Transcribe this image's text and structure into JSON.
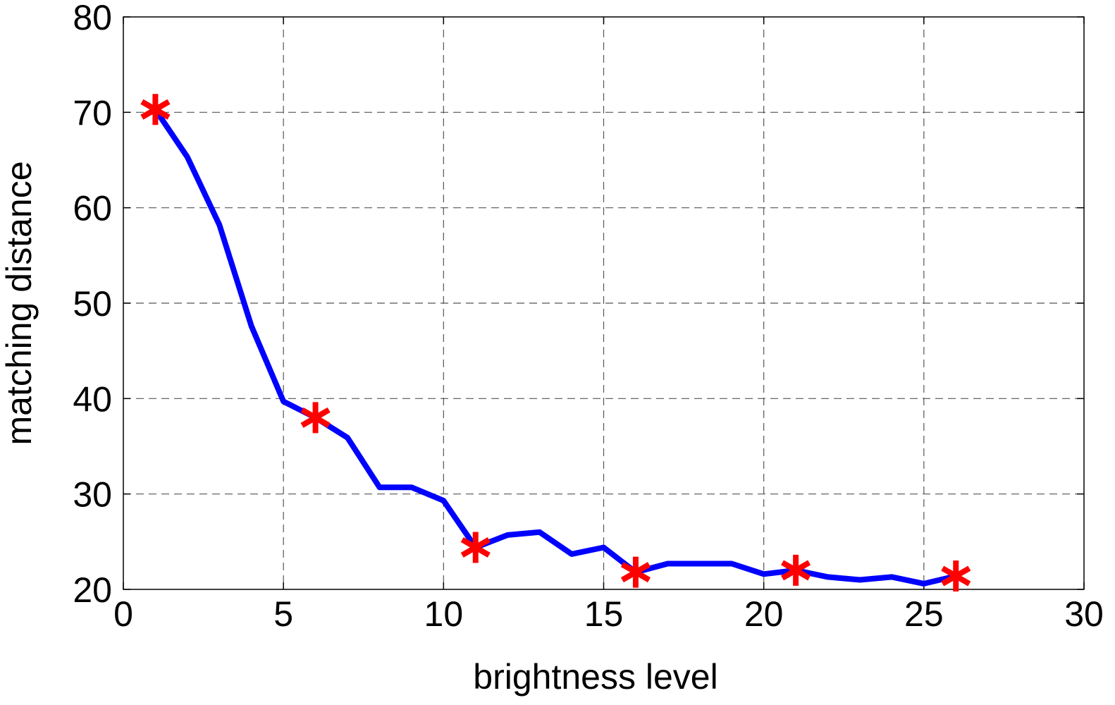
{
  "chart_data": {
    "type": "line",
    "xlabel": "brightness level",
    "ylabel": "matching distance",
    "xlim": [
      0,
      30
    ],
    "ylim": [
      20,
      80
    ],
    "xticks": [
      0,
      5,
      10,
      15,
      20,
      25,
      30
    ],
    "yticks": [
      20,
      30,
      40,
      50,
      60,
      70,
      80
    ],
    "grid": true,
    "line_color": "#0000ff",
    "marker_color": "#ff0000",
    "series": [
      {
        "x": [
          1,
          2,
          3,
          4,
          5,
          6,
          7,
          8,
          9,
          10,
          11,
          12,
          13,
          14,
          15,
          16,
          17,
          18,
          19,
          20,
          21,
          22,
          23,
          24,
          25,
          26
        ],
        "y": [
          70.3,
          65.3,
          58.2,
          47.6,
          39.7,
          38.0,
          35.9,
          30.7,
          30.7,
          29.3,
          24.4,
          25.7,
          26.0,
          23.7,
          24.4,
          21.8,
          22.7,
          22.7,
          22.7,
          21.6,
          22.0,
          21.3,
          21.0,
          21.3,
          20.6,
          21.4
        ]
      }
    ],
    "markers": {
      "symbol": "asterisk",
      "x": [
        1,
        6,
        11,
        16,
        21,
        26
      ],
      "y": [
        70.3,
        38.0,
        24.4,
        21.8,
        22.0,
        21.4
      ]
    }
  }
}
